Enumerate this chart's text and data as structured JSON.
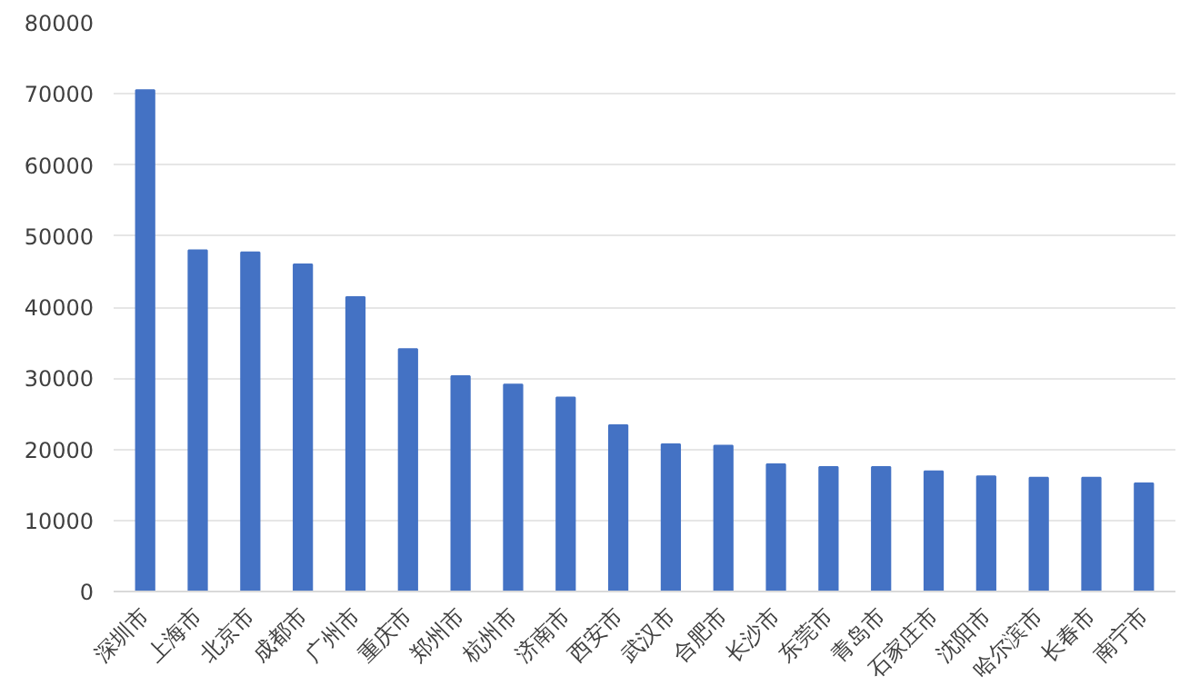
{
  "chart_data": {
    "type": "bar",
    "categories": [
      "深圳市",
      "上海市",
      "北京市",
      "成都市",
      "广州市",
      "重庆市",
      "郑州市",
      "杭州市",
      "济南市",
      "西安市",
      "武汉市",
      "合肥市",
      "长沙市",
      "东莞市",
      "青岛市",
      "石家庄市",
      "沈阳市",
      "哈尔滨市",
      "长春市",
      "南宁市"
    ],
    "values": [
      70500,
      48000,
      47700,
      46000,
      41400,
      34100,
      30300,
      29100,
      27300,
      23400,
      20700,
      20500,
      17900,
      17500,
      17500,
      16900,
      16200,
      16000,
      16000,
      15200
    ],
    "color": "#4472c4",
    "ylim": [
      0,
      80000
    ],
    "yticks": [
      0,
      10000,
      20000,
      30000,
      40000,
      50000,
      60000,
      70000,
      80000
    ],
    "grid": "y"
  }
}
